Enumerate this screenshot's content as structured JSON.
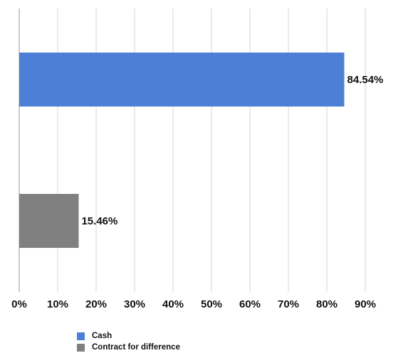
{
  "chart_data": {
    "type": "bar",
    "orientation": "horizontal",
    "categories": [
      "Cash",
      "Contract for difference"
    ],
    "values": [
      84.54,
      15.46
    ],
    "value_labels": [
      "84.54%",
      "15.46%"
    ],
    "colors": [
      "#4e7fd6",
      "#808080"
    ],
    "xlim": [
      0,
      90
    ],
    "xticks": [
      0,
      10,
      20,
      30,
      40,
      50,
      60,
      70,
      80,
      90
    ],
    "xtick_labels": [
      "0%",
      "10%",
      "20%",
      "30%",
      "40%",
      "50%",
      "60%",
      "70%",
      "80%",
      "90%"
    ],
    "grid": "vertical",
    "legend_position": "bottom",
    "title": "",
    "xlabel": "",
    "ylabel": ""
  }
}
